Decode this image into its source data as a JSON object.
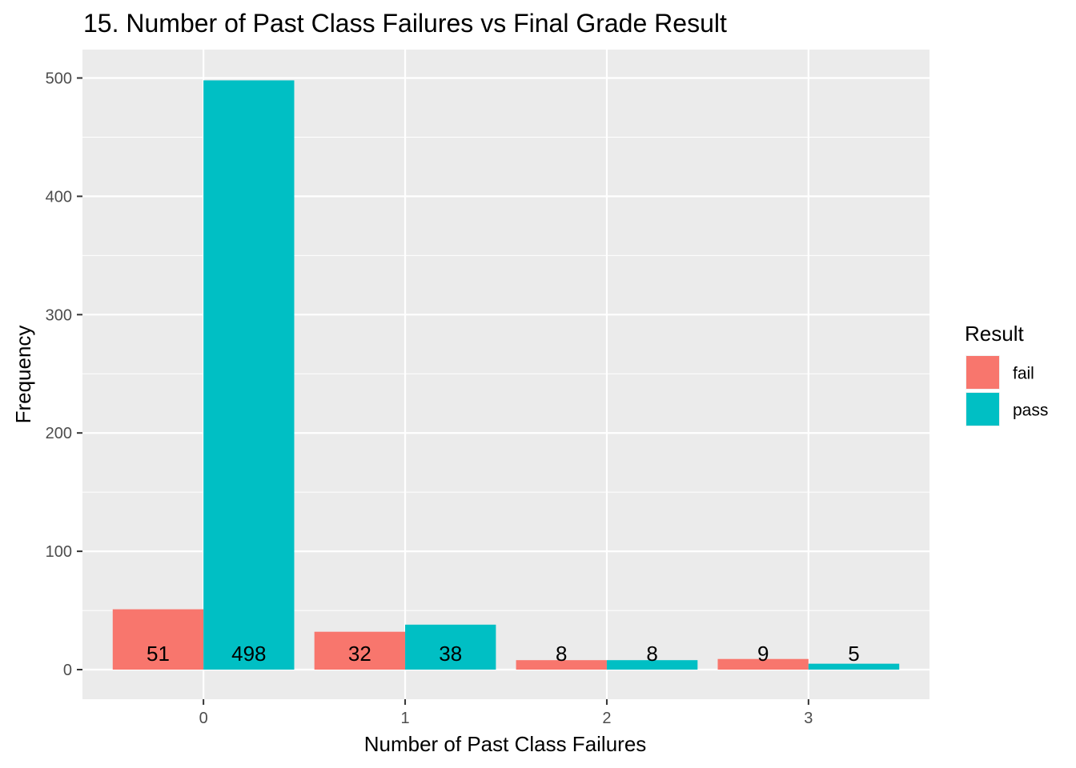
{
  "chart_data": {
    "type": "bar",
    "title": "15. Number of Past Class Failures vs Final Grade Result",
    "xlabel": "Number of Past Class Failures",
    "ylabel": "Frequency",
    "categories": [
      "0",
      "1",
      "2",
      "3"
    ],
    "series": [
      {
        "name": "fail",
        "color": "#F8766D",
        "values": [
          51,
          32,
          8,
          9
        ]
      },
      {
        "name": "pass",
        "color": "#00BFC4",
        "values": [
          498,
          38,
          8,
          5
        ]
      }
    ],
    "ylim": [
      -25,
      524
    ],
    "yticks": [
      0,
      100,
      200,
      300,
      400,
      500
    ],
    "legend": {
      "title": "Result",
      "position": "right"
    },
    "grid": true,
    "panel_background": "#EBEBEB",
    "grid_color": "#FFFFFF"
  }
}
